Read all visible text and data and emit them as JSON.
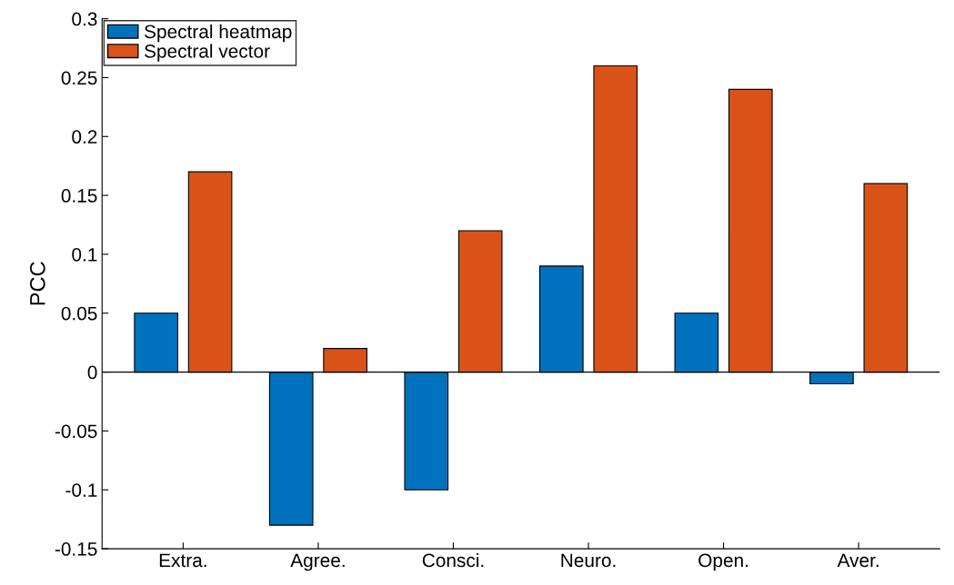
{
  "chart_data": {
    "type": "bar",
    "ylabel": "PCC",
    "categories": [
      "Extra.",
      "Agree.",
      "Consci.",
      "Neuro.",
      "Open.",
      "Aver."
    ],
    "series": [
      {
        "name": "Spectral heatmap",
        "color": "#0072bd",
        "values": [
          0.05,
          -0.13,
          -0.1,
          0.09,
          0.05,
          -0.01
        ]
      },
      {
        "name": "Spectral vector",
        "color": "#d95319",
        "values": [
          0.17,
          0.02,
          0.12,
          0.26,
          0.24,
          0.16
        ]
      }
    ],
    "ylim": [
      -0.15,
      0.3
    ],
    "yticks": [
      -0.15,
      -0.1,
      -0.05,
      0,
      0.05,
      0.1,
      0.15,
      0.2,
      0.25,
      0.3
    ],
    "ref_lines": [
      {
        "axis": "y",
        "value": 0,
        "color": "#000000"
      }
    ],
    "legend": "top left",
    "grid": false
  }
}
